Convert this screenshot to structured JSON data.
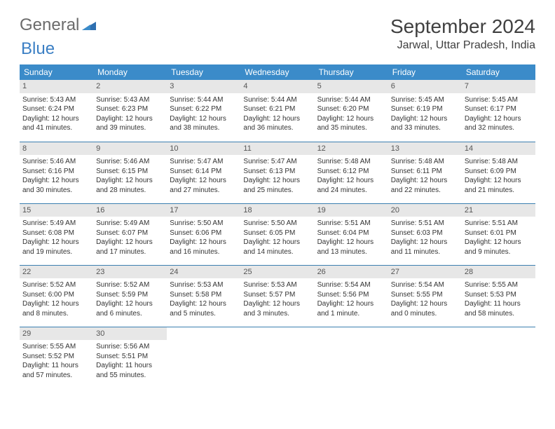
{
  "brand": {
    "part1": "General",
    "part2": "Blue"
  },
  "title": "September 2024",
  "location": "Jarwal, Uttar Pradesh, India",
  "colors": {
    "header_bg": "#3b8bc9",
    "header_text": "#ffffff",
    "rule": "#3b7fb0",
    "daynum_bg": "#e7e7e7",
    "logo_gray": "#6b6b6b",
    "logo_blue": "#3b7fc4"
  },
  "weekdays": [
    "Sunday",
    "Monday",
    "Tuesday",
    "Wednesday",
    "Thursday",
    "Friday",
    "Saturday"
  ],
  "days": [
    {
      "n": 1,
      "sr": "5:43 AM",
      "ss": "6:24 PM",
      "dl": "12 hours and 41 minutes."
    },
    {
      "n": 2,
      "sr": "5:43 AM",
      "ss": "6:23 PM",
      "dl": "12 hours and 39 minutes."
    },
    {
      "n": 3,
      "sr": "5:44 AM",
      "ss": "6:22 PM",
      "dl": "12 hours and 38 minutes."
    },
    {
      "n": 4,
      "sr": "5:44 AM",
      "ss": "6:21 PM",
      "dl": "12 hours and 36 minutes."
    },
    {
      "n": 5,
      "sr": "5:44 AM",
      "ss": "6:20 PM",
      "dl": "12 hours and 35 minutes."
    },
    {
      "n": 6,
      "sr": "5:45 AM",
      "ss": "6:19 PM",
      "dl": "12 hours and 33 minutes."
    },
    {
      "n": 7,
      "sr": "5:45 AM",
      "ss": "6:17 PM",
      "dl": "12 hours and 32 minutes."
    },
    {
      "n": 8,
      "sr": "5:46 AM",
      "ss": "6:16 PM",
      "dl": "12 hours and 30 minutes."
    },
    {
      "n": 9,
      "sr": "5:46 AM",
      "ss": "6:15 PM",
      "dl": "12 hours and 28 minutes."
    },
    {
      "n": 10,
      "sr": "5:47 AM",
      "ss": "6:14 PM",
      "dl": "12 hours and 27 minutes."
    },
    {
      "n": 11,
      "sr": "5:47 AM",
      "ss": "6:13 PM",
      "dl": "12 hours and 25 minutes."
    },
    {
      "n": 12,
      "sr": "5:48 AM",
      "ss": "6:12 PM",
      "dl": "12 hours and 24 minutes."
    },
    {
      "n": 13,
      "sr": "5:48 AM",
      "ss": "6:11 PM",
      "dl": "12 hours and 22 minutes."
    },
    {
      "n": 14,
      "sr": "5:48 AM",
      "ss": "6:09 PM",
      "dl": "12 hours and 21 minutes."
    },
    {
      "n": 15,
      "sr": "5:49 AM",
      "ss": "6:08 PM",
      "dl": "12 hours and 19 minutes."
    },
    {
      "n": 16,
      "sr": "5:49 AM",
      "ss": "6:07 PM",
      "dl": "12 hours and 17 minutes."
    },
    {
      "n": 17,
      "sr": "5:50 AM",
      "ss": "6:06 PM",
      "dl": "12 hours and 16 minutes."
    },
    {
      "n": 18,
      "sr": "5:50 AM",
      "ss": "6:05 PM",
      "dl": "12 hours and 14 minutes."
    },
    {
      "n": 19,
      "sr": "5:51 AM",
      "ss": "6:04 PM",
      "dl": "12 hours and 13 minutes."
    },
    {
      "n": 20,
      "sr": "5:51 AM",
      "ss": "6:03 PM",
      "dl": "12 hours and 11 minutes."
    },
    {
      "n": 21,
      "sr": "5:51 AM",
      "ss": "6:01 PM",
      "dl": "12 hours and 9 minutes."
    },
    {
      "n": 22,
      "sr": "5:52 AM",
      "ss": "6:00 PM",
      "dl": "12 hours and 8 minutes."
    },
    {
      "n": 23,
      "sr": "5:52 AM",
      "ss": "5:59 PM",
      "dl": "12 hours and 6 minutes."
    },
    {
      "n": 24,
      "sr": "5:53 AM",
      "ss": "5:58 PM",
      "dl": "12 hours and 5 minutes."
    },
    {
      "n": 25,
      "sr": "5:53 AM",
      "ss": "5:57 PM",
      "dl": "12 hours and 3 minutes."
    },
    {
      "n": 26,
      "sr": "5:54 AM",
      "ss": "5:56 PM",
      "dl": "12 hours and 1 minute."
    },
    {
      "n": 27,
      "sr": "5:54 AM",
      "ss": "5:55 PM",
      "dl": "12 hours and 0 minutes."
    },
    {
      "n": 28,
      "sr": "5:55 AM",
      "ss": "5:53 PM",
      "dl": "11 hours and 58 minutes."
    },
    {
      "n": 29,
      "sr": "5:55 AM",
      "ss": "5:52 PM",
      "dl": "11 hours and 57 minutes."
    },
    {
      "n": 30,
      "sr": "5:56 AM",
      "ss": "5:51 PM",
      "dl": "11 hours and 55 minutes."
    }
  ],
  "labels": {
    "sunrise": "Sunrise:",
    "sunset": "Sunset:",
    "daylight": "Daylight:"
  },
  "layout": {
    "start_weekday": 0,
    "cols": 7
  }
}
